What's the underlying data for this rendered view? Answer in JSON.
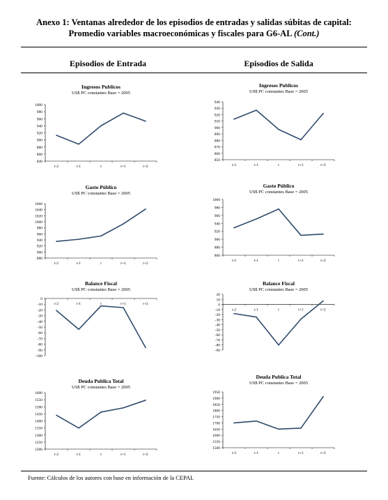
{
  "header": {
    "title_line1": "Anexo 1: Ventanas alrededor de los episodios de entradas y salidas súbitas de capital:",
    "title_line2": "Promedio variables macroeconómicas  y fiscales para G6-AL",
    "title_cont": "(Cont.)"
  },
  "columns": {
    "left": "Episodios de Entrada",
    "right": "Episodios de Salida"
  },
  "footer": {
    "source": "Fuente: Cálculos de los autores con base en información de la CEPAL"
  },
  "chart_data": [
    {
      "id": "ingresos-entrada",
      "type": "line",
      "title": "Ingresos Publicos",
      "subtitle": "US$ PC constantes  Base = 2005",
      "categories": [
        "t-2",
        "t-1",
        "t",
        "t+1",
        "t+2"
      ],
      "values": [
        913,
        888,
        940,
        976,
        953
      ],
      "ylim": [
        840,
        1000
      ],
      "yticks": [
        840,
        860,
        880,
        900,
        920,
        940,
        960,
        980,
        1000
      ],
      "line_color": "#2f4a6b"
    },
    {
      "id": "ingresos-salida",
      "type": "line",
      "title": "Ingresos  Publicos",
      "subtitle": "US$ PC constantes  Base = 2005",
      "categories": [
        "t-2",
        "t-1",
        "t",
        "t+1",
        "t+2"
      ],
      "values": [
        913,
        927,
        897,
        881,
        922
      ],
      "ylim": [
        850,
        940
      ],
      "yticks": [
        850,
        860,
        870,
        880,
        890,
        900,
        910,
        920,
        930,
        940
      ],
      "line_color": "#2f4a6b"
    },
    {
      "id": "gasto-entrada",
      "type": "line",
      "title": "Gasto Público",
      "subtitle": "US$ PC constantes  Base = 2005",
      "categories": [
        "t-2",
        "t-1",
        "t",
        "t+1",
        "t+2"
      ],
      "values": [
        935,
        942,
        953,
        993,
        1042
      ],
      "ylim": [
        880,
        1060
      ],
      "yticks": [
        880,
        900,
        920,
        940,
        960,
        980,
        1000,
        1020,
        1040,
        1060
      ],
      "line_color": "#2f4a6b"
    },
    {
      "id": "gasto-salida",
      "type": "line",
      "title": "Gasto Público",
      "subtitle": "US$ PC constantes  Base = 2005",
      "categories": [
        "t-2",
        "t-1",
        "t",
        "t+1",
        "t+2"
      ],
      "values": [
        929,
        951,
        976,
        910,
        913
      ],
      "ylim": [
        860,
        1000
      ],
      "yticks": [
        860,
        880,
        900,
        920,
        940,
        960,
        980,
        1000
      ],
      "line_color": "#2f4a6b"
    },
    {
      "id": "balance-entrada",
      "type": "line",
      "title": "Balance Fiscal",
      "subtitle": "US$ PC constantes  Base = 2005",
      "categories": [
        "t-2",
        "t-1",
        "t",
        "t+1",
        "t+2"
      ],
      "values": [
        -21,
        -54,
        -13,
        -16,
        -86
      ],
      "ylim": [
        -100,
        0
      ],
      "yticks": [
        -100,
        -90,
        -80,
        -70,
        -60,
        -50,
        -40,
        -30,
        -20,
        -10,
        0
      ],
      "category_axis": "top",
      "line_color": "#2f4a6b"
    },
    {
      "id": "balance-salida",
      "type": "line",
      "title": "Balance Fiscal",
      "subtitle": "US$ PC constantes  Base = 2005",
      "categories": [
        "t-2",
        "t-1",
        "t",
        "t+1",
        "t+2"
      ],
      "values": [
        -18,
        -25,
        -80,
        -29,
        7
      ],
      "ylim": [
        -90,
        20
      ],
      "yticks": [
        -90,
        -80,
        -70,
        -60,
        -50,
        -40,
        -30,
        -20,
        -10,
        0,
        10,
        20
      ],
      "category_axis": "zero",
      "line_color": "#2f4a6b"
    },
    {
      "id": "deuda-entrada",
      "type": "line",
      "title": "Deuda Publica Total",
      "subtitle": "US$ PC constantes  Base = 2005",
      "categories": [
        "t-2",
        "t-1",
        "t",
        "t+1",
        "t+2"
      ],
      "values": [
        1440,
        1349,
        1462,
        1492,
        1546
      ],
      "ylim": [
        1200,
        1600
      ],
      "yticks": [
        1200,
        1250,
        1300,
        1350,
        1400,
        1450,
        1500,
        1550,
        1600
      ],
      "line_color": "#2f4a6b"
    },
    {
      "id": "deuda-salida",
      "type": "line",
      "title": "Deuda Publica Total",
      "subtitle": "US$ PC constantes  Base = 2005",
      "categories": [
        "t-2",
        "t-1",
        "t",
        "t+1",
        "t+2"
      ],
      "values": [
        1700,
        1715,
        1650,
        1658,
        1912
      ],
      "ylim": [
        1500,
        1950
      ],
      "yticks": [
        1500,
        1550,
        1600,
        1650,
        1700,
        1750,
        1800,
        1850,
        1900,
        1950
      ],
      "line_color": "#2f4a6b"
    }
  ]
}
